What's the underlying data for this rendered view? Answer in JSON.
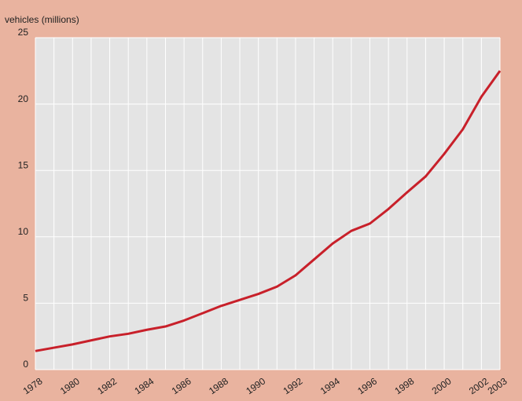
{
  "chart_data": {
    "type": "line",
    "y_label": "vehicles (millions)",
    "x": [
      1978,
      1979,
      1980,
      1981,
      1982,
      1983,
      1984,
      1985,
      1986,
      1987,
      1988,
      1989,
      1990,
      1991,
      1992,
      1993,
      1994,
      1995,
      1996,
      1997,
      1998,
      1999,
      2000,
      2001,
      2002,
      2003
    ],
    "series": [
      {
        "color": "#c8202a",
        "values": [
          1.4,
          1.65,
          1.9,
          2.2,
          2.5,
          2.7,
          3.0,
          3.25,
          3.7,
          4.25,
          4.8,
          5.25,
          5.7,
          6.25,
          7.1,
          8.3,
          9.5,
          10.45,
          11.0,
          12.1,
          13.35,
          14.55,
          16.25,
          18.1,
          20.55,
          22.5
        ]
      }
    ],
    "xlim": [
      1978,
      2003
    ],
    "xticks": [
      1978,
      1980,
      1982,
      1984,
      1986,
      1988,
      1990,
      1992,
      1994,
      1996,
      1998,
      2000,
      2002,
      2003
    ],
    "ylim": [
      0,
      25
    ],
    "yticks": [
      0,
      5,
      10,
      15,
      20,
      25
    ],
    "grid": true
  }
}
